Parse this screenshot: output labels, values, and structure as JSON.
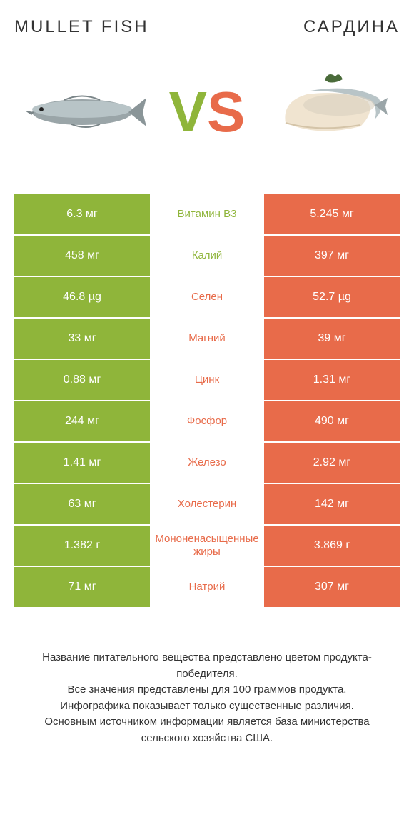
{
  "colors": {
    "green": "#8fb53a",
    "orange": "#e86b4a",
    "text": "#333333",
    "bg": "#ffffff"
  },
  "vs": {
    "v_color": "#8fb53a",
    "s_color": "#e86b4a"
  },
  "header": {
    "left": "MULLET FISH",
    "right": "САРДИНА"
  },
  "rows": [
    {
      "label": "Витамин B3",
      "left": "6.3 мг",
      "right": "5.245 мг",
      "winner": "left"
    },
    {
      "label": "Калий",
      "left": "458 мг",
      "right": "397 мг",
      "winner": "left"
    },
    {
      "label": "Селен",
      "left": "46.8 µg",
      "right": "52.7 µg",
      "winner": "right"
    },
    {
      "label": "Магний",
      "left": "33 мг",
      "right": "39 мг",
      "winner": "right"
    },
    {
      "label": "Цинк",
      "left": "0.88 мг",
      "right": "1.31 мг",
      "winner": "right"
    },
    {
      "label": "Фосфор",
      "left": "244 мг",
      "right": "490 мг",
      "winner": "right"
    },
    {
      "label": "Железо",
      "left": "1.41 мг",
      "right": "2.92 мг",
      "winner": "right"
    },
    {
      "label": "Холестерин",
      "left": "63 мг",
      "right": "142 мг",
      "winner": "right"
    },
    {
      "label": "Мононенасыщенные жиры",
      "left": "1.382 г",
      "right": "3.869 г",
      "winner": "right"
    },
    {
      "label": "Натрий",
      "left": "71 мг",
      "right": "307 мг",
      "winner": "right"
    }
  ],
  "footer": {
    "line1": "Название питательного вещества представлено цветом продукта-победителя.",
    "line2": "Все значения представлены для 100 граммов продукта.",
    "line3": "Инфографика показывает только существенные различия.",
    "line4": "Основным источником информации является база министерства сельского хозяйства США."
  }
}
